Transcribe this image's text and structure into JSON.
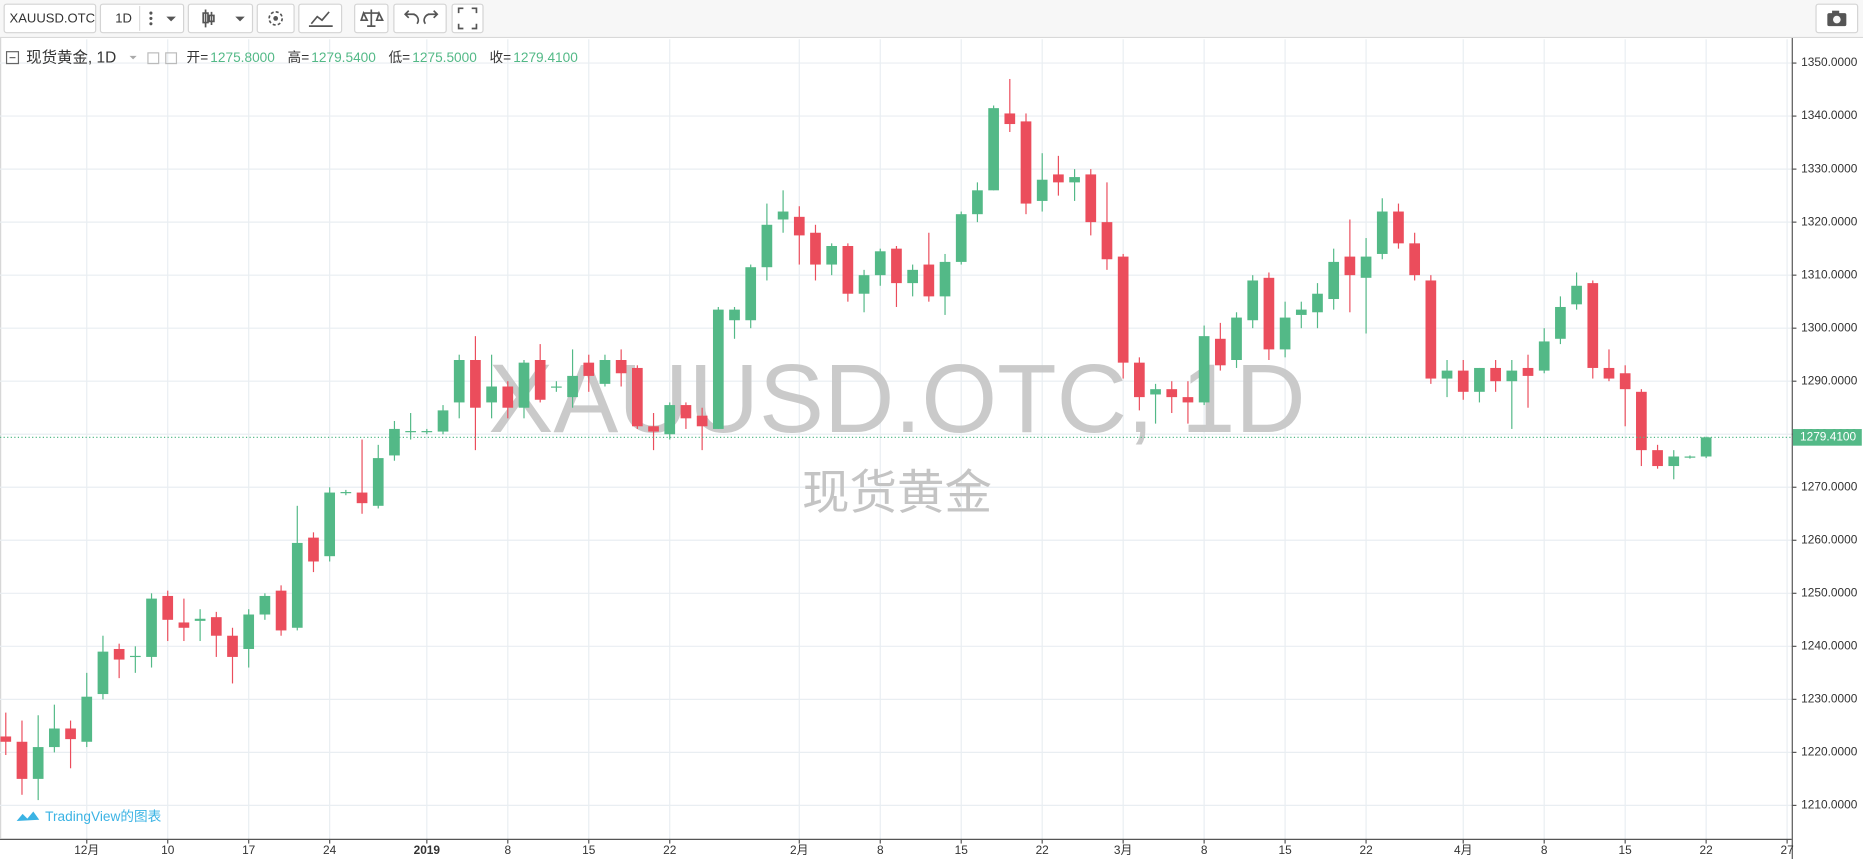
{
  "toolbar": {
    "symbol": "XAUUSD.OTC",
    "interval": "1D"
  },
  "chart_data": {
    "type": "candlestick",
    "title": "现货黄金, 1D",
    "watermark": "XAUUSD.OTC, 1D",
    "watermark_subtitle": "现货黄金",
    "ohlc_legend": [
      {
        "key": "开=",
        "text": "1275.8000"
      },
      {
        "key": "高=",
        "text": "1279.5400"
      },
      {
        "key": "低=",
        "text": "1275.5000"
      },
      {
        "key": "收=",
        "text": "1279.4100"
      }
    ],
    "last_price_label": "1279.4100",
    "branding": "TradingView的图表",
    "up_color": "#53b987",
    "down_color": "#eb4d5c",
    "grid": true,
    "ylim": [
      1203.7,
      1354.5
    ],
    "yticks": [
      {
        "value": 1210,
        "label": "1210.0000"
      },
      {
        "value": 1220,
        "label": "1220.0000"
      },
      {
        "value": 1230,
        "label": "1230.0000"
      },
      {
        "value": 1240,
        "label": "1240.0000"
      },
      {
        "value": 1250,
        "label": "1250.0000"
      },
      {
        "value": 1260,
        "label": "1260.0000"
      },
      {
        "value": 1270,
        "label": "1270.0000"
      },
      {
        "value": 1280,
        "label": "1280.0000"
      },
      {
        "value": 1290,
        "label": "1290.0000"
      },
      {
        "value": 1300,
        "label": "1300.0000"
      },
      {
        "value": 1310,
        "label": "1310.0000"
      },
      {
        "value": 1320,
        "label": "1320.0000"
      },
      {
        "value": 1330,
        "label": "1330.0000"
      },
      {
        "value": 1340,
        "label": "1340.0000"
      },
      {
        "value": 1350,
        "label": "1350.0000"
      }
    ],
    "categories": [
      null,
      null,
      null,
      null,
      null,
      "12月",
      null,
      null,
      null,
      null,
      "10",
      null,
      null,
      null,
      null,
      "17",
      null,
      null,
      null,
      null,
      "24",
      null,
      null,
      null,
      null,
      null,
      "2019",
      null,
      null,
      null,
      null,
      "8",
      null,
      null,
      null,
      null,
      "15",
      null,
      null,
      null,
      null,
      "22",
      null,
      null,
      null,
      null,
      null,
      null,
      null,
      "2月",
      null,
      null,
      null,
      null,
      "8",
      null,
      null,
      null,
      null,
      "15",
      null,
      null,
      null,
      null,
      "22",
      null,
      null,
      null,
      null,
      "3月",
      null,
      null,
      null,
      null,
      "8",
      null,
      null,
      null,
      null,
      "15",
      null,
      null,
      null,
      null,
      "22",
      null,
      null,
      null,
      null,
      null,
      "4月",
      null,
      null,
      null,
      null,
      "8",
      null,
      null,
      null,
      null,
      "15",
      null,
      null,
      null,
      null,
      "22",
      null,
      null,
      null,
      null,
      "27"
    ],
    "open": [
      1223,
      1222,
      1215,
      1221,
      1224.5,
      1222,
      1231,
      1239.5,
      1238,
      1238,
      1249.5,
      1244.5,
      1244.8,
      1245.5,
      1242,
      1239.5,
      1246,
      1250.5,
      1243.5,
      1260.5,
      1257,
      1269,
      1269,
      1266.5,
      1276,
      1280.5,
      1280.5,
      1280.5,
      1286,
      1294,
      1286,
      1289,
      1285,
      1294,
      1288.8,
      1287,
      1293.5,
      1289.5,
      1294,
      1292.5,
      1281.5,
      1280,
      1285.5,
      1283.5,
      1281,
      1301.5,
      1301.5,
      1311.5,
      1320.5,
      1321,
      1318,
      1312,
      1315.5,
      1306.5,
      1310,
      1315,
      1308.5,
      1312,
      1306,
      1312.5,
      1321.5,
      1326,
      1340.5,
      1339,
      1324,
      1329,
      1327.5,
      1329,
      1320,
      1313.5,
      1293.5,
      1287.5,
      1288.5,
      1287,
      1286,
      1298,
      1294,
      1301.5,
      1309.5,
      1296,
      1302.5,
      1303,
      1305.5,
      1313.5,
      1309.5,
      1314,
      1322,
      1316,
      1309,
      1290.5,
      1292,
      1288,
      1292.5,
      1290,
      1292.5,
      1292,
      1298,
      1304.5,
      1308.5,
      1292.5,
      1291.5,
      1288,
      1277,
      1274,
      1275.6,
      1275.8,
      null,
      null,
      null,
      null,
      null
    ],
    "high": [
      1227.5,
      1226,
      1227,
      1229,
      1226,
      1235,
      1242,
      1240.5,
      1240,
      1250,
      1250.5,
      1249,
      1247,
      1246.5,
      1243.5,
      1247,
      1250,
      1251.5,
      1266.5,
      1261.5,
      1270,
      1269.5,
      1279,
      1278,
      1282.5,
      1284,
      1281,
      1285.5,
      1295,
      1298.5,
      1295,
      1290,
      1294,
      1297,
      1290,
      1296,
      1295,
      1295,
      1296,
      1293,
      1284,
      1286,
      1286,
      1285,
      1304,
      1304,
      1312,
      1323.5,
      1326,
      1323,
      1319.5,
      1316,
      1316,
      1311,
      1315,
      1315.5,
      1312,
      1318,
      1314,
      1322,
      1327.5,
      1342,
      1347,
      1340.5,
      1333,
      1332.5,
      1330,
      1330,
      1327.5,
      1314,
      1294.5,
      1289.5,
      1290,
      1290,
      1300.5,
      1301,
      1303,
      1310,
      1310.5,
      1305,
      1305,
      1308.5,
      1315,
      1320.5,
      1317,
      1324.5,
      1323.5,
      1318,
      1310,
      1294,
      1294,
      1292.5,
      1294,
      1294,
      1295,
      1300,
      1306,
      1310.5,
      1309,
      1296,
      1293,
      1288.5,
      1278,
      1277,
      1276,
      1279.54,
      null,
      null,
      null,
      null,
      null
    ],
    "low": [
      1219.5,
      1212,
      1211,
      1220,
      1217,
      1221,
      1230,
      1234,
      1235,
      1236,
      1241,
      1241,
      1241,
      1238,
      1233,
      1236,
      1245,
      1242,
      1243,
      1254,
      1256,
      1268.5,
      1265,
      1266,
      1275,
      1279,
      1280,
      1280,
      1283,
      1277,
      1283,
      1283,
      1283,
      1286,
      1288,
      1285,
      1288,
      1289,
      1289,
      1281,
      1277,
      1279,
      1281,
      1277,
      1281,
      1298,
      1300,
      1309,
      1318,
      1312,
      1309,
      1310,
      1305,
      1303,
      1308,
      1304,
      1306,
      1305,
      1302.5,
      1312,
      1320,
      1326,
      1337,
      1321.5,
      1322,
      1325,
      1324,
      1317.5,
      1311,
      1290.5,
      1284.5,
      1282,
      1284,
      1282,
      1285.5,
      1292,
      1292.5,
      1300,
      1294,
      1294.5,
      1300,
      1300,
      1303.5,
      1303,
      1299,
      1313,
      1315,
      1309,
      1289.5,
      1287,
      1286.5,
      1286,
      1288,
      1281,
      1285,
      1291.5,
      1297,
      1303.5,
      1290.5,
      1290,
      1281.5,
      1274,
      1273.5,
      1271.5,
      1275.4,
      1275.5,
      null,
      null,
      null,
      null,
      null
    ],
    "close": [
      1222,
      1215,
      1221,
      1224.5,
      1222.5,
      1230.5,
      1239,
      1237.5,
      1238.2,
      1249,
      1245,
      1243.5,
      1245.2,
      1242,
      1238,
      1246,
      1249.5,
      1243,
      1259.5,
      1256,
      1269,
      1269.1,
      1267,
      1275.5,
      1281,
      1280.6,
      1280.6,
      1284.5,
      1294,
      1285,
      1289,
      1285,
      1293.5,
      1286.5,
      1289,
      1291,
      1291,
      1294,
      1291.5,
      1281.5,
      1280.5,
      1285.5,
      1283,
      1281.5,
      1303.5,
      1303.5,
      1311.5,
      1319.5,
      1322,
      1317.5,
      1312,
      1315.5,
      1306.5,
      1310,
      1314.5,
      1308.5,
      1311,
      1306,
      1312.5,
      1321.5,
      1326,
      1341.5,
      1338.5,
      1323.5,
      1328,
      1327.5,
      1328.5,
      1320,
      1313,
      1293.5,
      1287,
      1288.5,
      1287,
      1286,
      1298.5,
      1293,
      1302,
      1309,
      1296,
      1302,
      1303.5,
      1306.5,
      1312.5,
      1310,
      1313.5,
      1322,
      1316,
      1310,
      1290.5,
      1292,
      1288,
      1292.5,
      1290,
      1292,
      1291,
      1297.5,
      1304,
      1308,
      1292.5,
      1290.5,
      1288.5,
      1277,
      1274,
      1275.8,
      1275.8,
      1279.41,
      null,
      null,
      null,
      null,
      null
    ]
  }
}
